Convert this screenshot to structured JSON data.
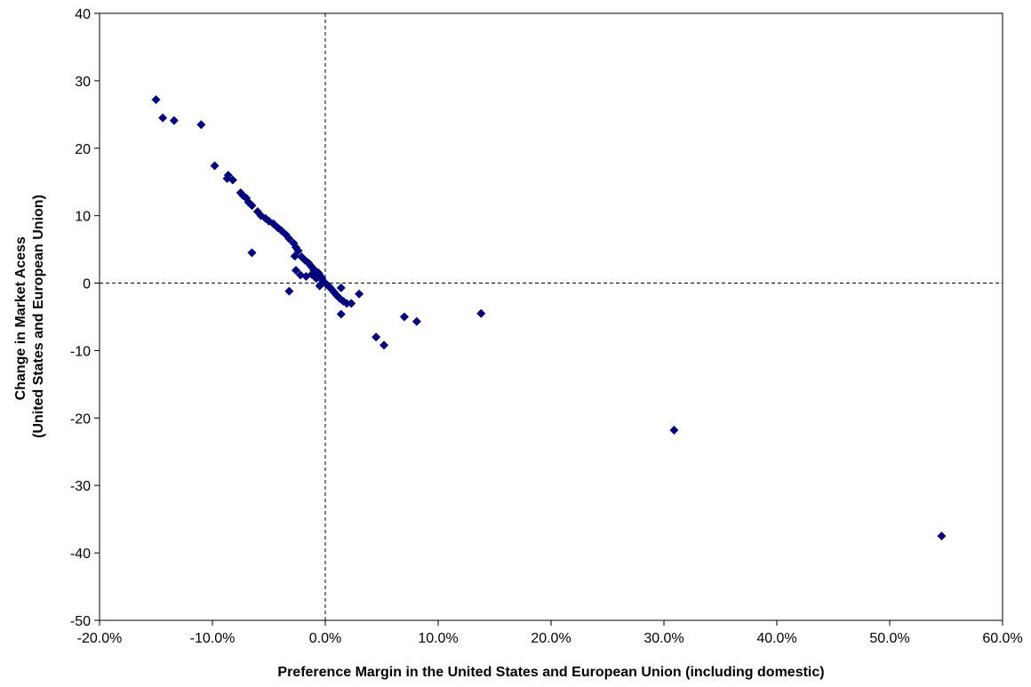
{
  "chart_data": {
    "type": "scatter",
    "title": "",
    "xlabel": "Preference Margin in the United States and European Union (including domestic)",
    "ylabel_line1": "Change in Market Acess",
    "ylabel_line2": "(United States and European Union)",
    "xlim": [
      -0.2,
      0.6
    ],
    "ylim": [
      -50,
      40
    ],
    "x_ticks": [
      -0.2,
      -0.1,
      0.0,
      0.1,
      0.2,
      0.3,
      0.4,
      0.5,
      0.6
    ],
    "x_tick_labels": [
      "-20.0%",
      "-10.0%",
      "0.0%",
      "10.0%",
      "20.0%",
      "30.0%",
      "40.0%",
      "50.0%",
      "60.0%"
    ],
    "y_ticks": [
      40,
      30,
      20,
      10,
      0,
      -10,
      -20,
      -30,
      -40,
      -50
    ],
    "y_tick_labels": [
      "40",
      "30",
      "20",
      "10",
      "0",
      "-10",
      "-20",
      "-30",
      "-40",
      "-50"
    ],
    "reference_lines": {
      "x": 0.0,
      "y": 0
    },
    "grid": false,
    "marker": "diamond",
    "marker_color": "#000080",
    "series": [
      {
        "points": [
          [
            -0.15,
            27.2
          ],
          [
            -0.144,
            24.5
          ],
          [
            -0.134,
            24.1
          ],
          [
            -0.11,
            23.5
          ],
          [
            -0.098,
            17.4
          ],
          [
            -0.086,
            16.0
          ],
          [
            -0.087,
            15.5
          ],
          [
            -0.082,
            15.3
          ],
          [
            -0.075,
            13.4
          ],
          [
            -0.073,
            13.0
          ],
          [
            -0.07,
            12.6
          ],
          [
            -0.068,
            12.0
          ],
          [
            -0.065,
            11.5
          ],
          [
            -0.06,
            10.6
          ],
          [
            -0.057,
            10.0
          ],
          [
            -0.053,
            9.6
          ],
          [
            -0.05,
            9.2
          ],
          [
            -0.046,
            8.8
          ],
          [
            -0.042,
            8.2
          ],
          [
            -0.039,
            7.8
          ],
          [
            -0.035,
            7.2
          ],
          [
            -0.032,
            6.6
          ],
          [
            -0.028,
            5.9
          ],
          [
            -0.026,
            5.3
          ],
          [
            -0.024,
            4.8
          ],
          [
            -0.027,
            4.0
          ],
          [
            -0.065,
            4.5
          ],
          [
            -0.021,
            3.9
          ],
          [
            -0.018,
            3.4
          ],
          [
            -0.015,
            3.0
          ],
          [
            -0.013,
            2.6
          ],
          [
            -0.011,
            2.2
          ],
          [
            -0.01,
            1.9
          ],
          [
            -0.008,
            1.7
          ],
          [
            -0.006,
            1.5
          ],
          [
            -0.005,
            1.2
          ],
          [
            -0.004,
            0.9
          ],
          [
            -0.003,
            0.6
          ],
          [
            -0.002,
            0.3
          ],
          [
            0.0,
            0.0
          ],
          [
            0.002,
            -0.3
          ],
          [
            0.004,
            -0.6
          ],
          [
            0.006,
            -1.0
          ],
          [
            0.008,
            -1.4
          ],
          [
            0.01,
            -1.8
          ],
          [
            0.013,
            -2.3
          ],
          [
            0.016,
            -2.7
          ],
          [
            0.019,
            -3.0
          ],
          [
            0.023,
            -3.0
          ],
          [
            0.014,
            -0.7
          ],
          [
            0.014,
            -4.6
          ],
          [
            0.03,
            -1.6
          ],
          [
            -0.032,
            -1.2
          ],
          [
            -0.026,
            1.9
          ],
          [
            -0.022,
            1.2
          ],
          [
            -0.017,
            1.0
          ],
          [
            -0.012,
            1.3
          ],
          [
            -0.008,
            0.7
          ],
          [
            -0.005,
            -0.4
          ],
          [
            0.045,
            -8.0
          ],
          [
            0.052,
            -9.2
          ],
          [
            0.07,
            -5.0
          ],
          [
            0.081,
            -5.7
          ],
          [
            0.138,
            -4.5
          ],
          [
            0.309,
            -21.8
          ],
          [
            0.546,
            -37.5
          ]
        ]
      }
    ]
  }
}
